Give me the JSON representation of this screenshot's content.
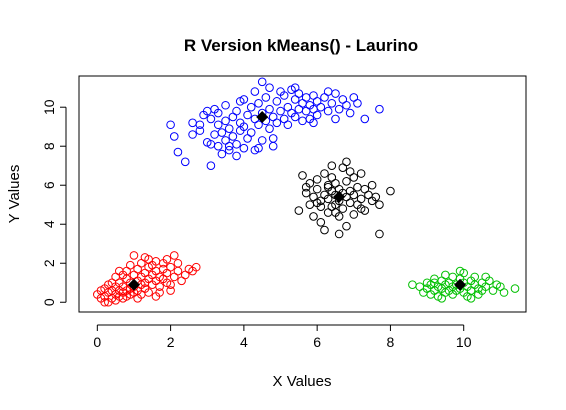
{
  "chart_data": {
    "type": "scatter",
    "title": "R Version kMeans() - Laurino",
    "xlabel": "X Values",
    "ylabel": "Y Values",
    "xlim": [
      -0.5,
      11.7
    ],
    "ylim": [
      -0.5,
      11.6
    ],
    "xticks": [
      0,
      2,
      4,
      6,
      8,
      10
    ],
    "yticks": [
      0,
      2,
      4,
      6,
      8,
      10
    ],
    "grid": false,
    "legend": "none",
    "series": [
      {
        "color": "#ff0000",
        "marker": "open-circle",
        "points": [
          [
            0.0,
            0.4
          ],
          [
            0.1,
            0.6
          ],
          [
            0.1,
            0.2
          ],
          [
            0.2,
            0.7
          ],
          [
            0.2,
            0.3
          ],
          [
            0.3,
            0.5
          ],
          [
            0.3,
            0.0
          ],
          [
            0.3,
            0.9
          ],
          [
            0.4,
            0.6
          ],
          [
            0.4,
            0.2
          ],
          [
            0.5,
            0.8
          ],
          [
            0.5,
            0.4
          ],
          [
            0.5,
            0.1
          ],
          [
            0.6,
            0.6
          ],
          [
            0.6,
            0.3
          ],
          [
            0.6,
            1.0
          ],
          [
            0.7,
            0.5
          ],
          [
            0.7,
            0.2
          ],
          [
            0.7,
            0.8
          ],
          [
            0.8,
            0.6
          ],
          [
            0.8,
            0.3
          ],
          [
            0.8,
            1.2
          ],
          [
            0.9,
            0.7
          ],
          [
            0.9,
            0.4
          ],
          [
            0.9,
            1.0
          ],
          [
            1.0,
            0.5
          ],
          [
            1.0,
            1.4
          ],
          [
            1.0,
            0.8
          ],
          [
            1.1,
            1.1
          ],
          [
            1.1,
            0.6
          ],
          [
            1.1,
            1.7
          ],
          [
            1.2,
            1.3
          ],
          [
            1.2,
            0.9
          ],
          [
            1.2,
            2.0
          ],
          [
            1.3,
            1.5
          ],
          [
            1.3,
            1.0
          ],
          [
            1.3,
            0.7
          ],
          [
            1.4,
            1.8
          ],
          [
            1.4,
            1.2
          ],
          [
            1.4,
            2.2
          ],
          [
            1.5,
            1.4
          ],
          [
            1.5,
            0.9
          ],
          [
            1.5,
            1.9
          ],
          [
            1.6,
            1.6
          ],
          [
            1.6,
            1.1
          ],
          [
            1.6,
            2.1
          ],
          [
            1.7,
            1.3
          ],
          [
            1.7,
            0.8
          ],
          [
            1.8,
            1.7
          ],
          [
            1.8,
            1.2
          ],
          [
            1.8,
            2.0
          ],
          [
            1.9,
            1.0
          ],
          [
            1.9,
            1.5
          ],
          [
            2.0,
            1.8
          ],
          [
            2.0,
            0.9
          ],
          [
            2.1,
            1.3
          ],
          [
            2.1,
            2.4
          ],
          [
            2.2,
            1.6
          ],
          [
            2.3,
            1.1
          ],
          [
            2.4,
            1.4
          ],
          [
            2.5,
            1.7
          ],
          [
            2.6,
            1.6
          ],
          [
            2.7,
            1.8
          ],
          [
            0.9,
            1.9
          ],
          [
            1.0,
            2.4
          ],
          [
            0.6,
            1.6
          ],
          [
            0.4,
            1.0
          ],
          [
            1.2,
            0.4
          ],
          [
            1.4,
            0.5
          ],
          [
            1.7,
            0.5
          ],
          [
            0.8,
            1.6
          ],
          [
            1.9,
            2.2
          ],
          [
            2.0,
            0.6
          ],
          [
            0.2,
            0.0
          ],
          [
            1.1,
            0.2
          ],
          [
            0.5,
            1.3
          ],
          [
            1.6,
            0.3
          ],
          [
            2.2,
            2.0
          ],
          [
            1.3,
            2.3
          ],
          [
            0.7,
            1.4
          ]
        ]
      },
      {
        "color": "#0000ff",
        "marker": "open-circle",
        "points": [
          [
            2.0,
            9.1
          ],
          [
            2.1,
            8.5
          ],
          [
            2.2,
            7.7
          ],
          [
            2.4,
            7.2
          ],
          [
            2.6,
            9.2
          ],
          [
            2.8,
            8.8
          ],
          [
            2.9,
            9.6
          ],
          [
            3.0,
            8.2
          ],
          [
            3.1,
            7.0
          ],
          [
            3.1,
            9.4
          ],
          [
            3.2,
            8.6
          ],
          [
            3.2,
            9.9
          ],
          [
            3.3,
            8.0
          ],
          [
            3.3,
            9.1
          ],
          [
            3.4,
            8.7
          ],
          [
            3.4,
            7.6
          ],
          [
            3.5,
            9.3
          ],
          [
            3.5,
            8.3
          ],
          [
            3.5,
            10.1
          ],
          [
            3.6,
            8.9
          ],
          [
            3.6,
            7.8
          ],
          [
            3.7,
            9.5
          ],
          [
            3.7,
            8.5
          ],
          [
            3.8,
            9.8
          ],
          [
            3.8,
            8.1
          ],
          [
            3.8,
            7.5
          ],
          [
            3.9,
            9.2
          ],
          [
            3.9,
            8.8
          ],
          [
            4.0,
            10.4
          ],
          [
            4.0,
            9.0
          ],
          [
            4.0,
            7.9
          ],
          [
            4.1,
            9.6
          ],
          [
            4.1,
            8.4
          ],
          [
            4.2,
            10.0
          ],
          [
            4.2,
            8.7
          ],
          [
            4.3,
            9.4
          ],
          [
            4.3,
            7.8
          ],
          [
            4.4,
            10.2
          ],
          [
            4.4,
            9.1
          ],
          [
            4.5,
            9.7
          ],
          [
            4.5,
            8.3
          ],
          [
            4.6,
            10.5
          ],
          [
            4.6,
            9.3
          ],
          [
            4.7,
            9.9
          ],
          [
            4.7,
            11.0
          ],
          [
            4.8,
            9.5
          ],
          [
            4.8,
            8.0
          ],
          [
            4.9,
            10.3
          ],
          [
            4.9,
            9.2
          ],
          [
            5.0,
            10.8
          ],
          [
            5.0,
            9.8
          ],
          [
            5.1,
            9.4
          ],
          [
            5.1,
            10.6
          ],
          [
            5.2,
            10.0
          ],
          [
            5.2,
            9.1
          ],
          [
            5.3,
            10.9
          ],
          [
            5.3,
            9.7
          ],
          [
            5.4,
            10.4
          ],
          [
            5.4,
            9.5
          ],
          [
            5.5,
            10.7
          ],
          [
            5.5,
            9.9
          ],
          [
            5.6,
            10.2
          ],
          [
            5.6,
            9.3
          ],
          [
            5.7,
            10.5
          ],
          [
            5.7,
            9.8
          ],
          [
            5.8,
            10.1
          ],
          [
            5.8,
            9.4
          ],
          [
            5.9,
            10.6
          ],
          [
            5.9,
            9.9
          ],
          [
            6.0,
            10.3
          ],
          [
            6.0,
            9.6
          ],
          [
            6.1,
            10.0
          ],
          [
            6.2,
            10.5
          ],
          [
            6.3,
            9.8
          ],
          [
            6.4,
            10.2
          ],
          [
            6.5,
            10.7
          ],
          [
            6.6,
            9.9
          ],
          [
            6.7,
            10.4
          ],
          [
            6.8,
            10.1
          ],
          [
            6.9,
            9.7
          ],
          [
            7.0,
            10.5
          ],
          [
            7.1,
            10.2
          ],
          [
            7.3,
            9.4
          ],
          [
            7.7,
            9.9
          ],
          [
            4.5,
            11.3
          ],
          [
            4.3,
            10.8
          ],
          [
            3.0,
            9.8
          ],
          [
            3.6,
            8.0
          ],
          [
            4.8,
            8.4
          ],
          [
            3.3,
            9.7
          ],
          [
            4.7,
            8.9
          ],
          [
            5.4,
            11.0
          ],
          [
            2.8,
            9.1
          ],
          [
            3.9,
            10.3
          ],
          [
            4.4,
            7.9
          ],
          [
            5.9,
            9.2
          ],
          [
            6.5,
            9.4
          ],
          [
            6.3,
            10.8
          ],
          [
            3.1,
            8.1
          ],
          [
            2.6,
            8.6
          ]
        ]
      },
      {
        "color": "#000000",
        "marker": "open-circle",
        "points": [
          [
            5.5,
            4.7
          ],
          [
            5.6,
            6.5
          ],
          [
            5.7,
            5.6
          ],
          [
            5.8,
            5.0
          ],
          [
            5.8,
            6.1
          ],
          [
            5.9,
            4.4
          ],
          [
            5.9,
            5.4
          ],
          [
            6.0,
            6.3
          ],
          [
            6.0,
            5.8
          ],
          [
            6.1,
            4.9
          ],
          [
            6.1,
            5.2
          ],
          [
            6.2,
            6.6
          ],
          [
            6.2,
            5.5
          ],
          [
            6.2,
            3.7
          ],
          [
            6.3,
            6.0
          ],
          [
            6.3,
            4.6
          ],
          [
            6.3,
            5.3
          ],
          [
            6.4,
            5.7
          ],
          [
            6.4,
            4.9
          ],
          [
            6.4,
            6.4
          ],
          [
            6.5,
            5.5
          ],
          [
            6.5,
            5.0
          ],
          [
            6.5,
            6.1
          ],
          [
            6.6,
            5.8
          ],
          [
            6.6,
            4.4
          ],
          [
            6.6,
            5.2
          ],
          [
            6.7,
            5.6
          ],
          [
            6.7,
            6.9
          ],
          [
            6.7,
            4.8
          ],
          [
            6.8,
            5.4
          ],
          [
            6.8,
            6.2
          ],
          [
            6.8,
            3.9
          ],
          [
            6.9,
            5.7
          ],
          [
            6.9,
            5.1
          ],
          [
            7.0,
            6.4
          ],
          [
            7.0,
            4.5
          ],
          [
            7.0,
            5.5
          ],
          [
            7.1,
            5.9
          ],
          [
            7.1,
            5.0
          ],
          [
            7.2,
            6.6
          ],
          [
            7.2,
            5.3
          ],
          [
            7.3,
            5.8
          ],
          [
            7.3,
            4.7
          ],
          [
            7.4,
            5.5
          ],
          [
            7.5,
            6.0
          ],
          [
            7.5,
            5.2
          ],
          [
            7.6,
            5.4
          ],
          [
            7.7,
            5.0
          ],
          [
            7.7,
            3.5
          ],
          [
            8.0,
            5.7
          ],
          [
            6.0,
            5.1
          ],
          [
            6.4,
            7.0
          ],
          [
            6.1,
            4.1
          ],
          [
            5.7,
            5.9
          ],
          [
            6.6,
            3.5
          ],
          [
            6.9,
            6.7
          ],
          [
            6.3,
            5.9
          ],
          [
            7.2,
            4.8
          ],
          [
            6.5,
            4.6
          ],
          [
            6.8,
            7.2
          ]
        ]
      },
      {
        "color": "#00c000",
        "marker": "open-circle",
        "points": [
          [
            8.6,
            0.9
          ],
          [
            8.8,
            0.8
          ],
          [
            8.9,
            0.5
          ],
          [
            9.0,
            1.0
          ],
          [
            9.0,
            0.7
          ],
          [
            9.1,
            0.4
          ],
          [
            9.1,
            0.9
          ],
          [
            9.2,
            1.2
          ],
          [
            9.2,
            0.6
          ],
          [
            9.3,
            0.8
          ],
          [
            9.3,
            0.3
          ],
          [
            9.4,
            1.1
          ],
          [
            9.4,
            0.7
          ],
          [
            9.5,
            0.9
          ],
          [
            9.5,
            0.5
          ],
          [
            9.5,
            1.4
          ],
          [
            9.6,
            1.0
          ],
          [
            9.6,
            0.6
          ],
          [
            9.7,
            0.8
          ],
          [
            9.7,
            1.3
          ],
          [
            9.7,
            0.4
          ],
          [
            9.8,
            0.9
          ],
          [
            9.8,
            0.6
          ],
          [
            9.9,
            1.2
          ],
          [
            9.9,
            0.7
          ],
          [
            10.0,
            1.0
          ],
          [
            10.0,
            0.5
          ],
          [
            10.0,
            1.5
          ],
          [
            10.1,
            0.8
          ],
          [
            10.1,
            0.3
          ],
          [
            10.2,
            1.1
          ],
          [
            10.2,
            0.6
          ],
          [
            10.3,
            0.9
          ],
          [
            10.3,
            1.3
          ],
          [
            10.4,
            0.7
          ],
          [
            10.4,
            0.4
          ],
          [
            10.5,
            1.0
          ],
          [
            10.5,
            0.6
          ],
          [
            10.6,
            0.8
          ],
          [
            10.7,
            1.1
          ],
          [
            10.8,
            0.6
          ],
          [
            10.9,
            0.9
          ],
          [
            11.0,
            0.8
          ],
          [
            11.1,
            0.5
          ],
          [
            11.4,
            0.7
          ],
          [
            9.4,
            0.2
          ],
          [
            9.9,
            1.6
          ],
          [
            10.6,
            1.3
          ],
          [
            10.2,
            0.2
          ],
          [
            9.2,
            1.0
          ]
        ]
      }
    ],
    "centroids": {
      "color": "#000000",
      "marker": "filled-diamond",
      "points": [
        [
          1.0,
          0.9
        ],
        [
          4.5,
          9.5
        ],
        [
          6.6,
          5.4
        ],
        [
          9.9,
          0.9
        ]
      ]
    }
  }
}
